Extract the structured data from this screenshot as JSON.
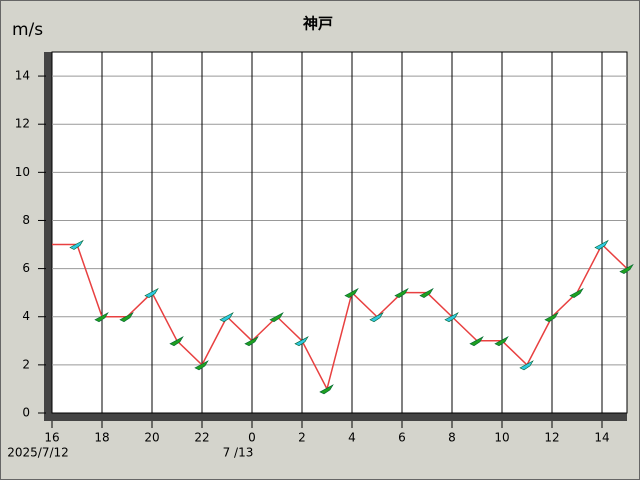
{
  "chart_data": {
    "type": "line",
    "title": "神戸",
    "y_label": "m/s",
    "categories": [
      "16",
      null,
      "18",
      null,
      "20",
      null,
      "22",
      null,
      "0",
      null,
      "2",
      null,
      "4",
      null,
      "6",
      null,
      "8",
      null,
      "10",
      null,
      "12",
      null,
      "14",
      null
    ],
    "x_sublabels": [
      "2025/7/12",
      null,
      null,
      null,
      null,
      null,
      null,
      null,
      "7 /13",
      null,
      null,
      null,
      null,
      null,
      null,
      null,
      null,
      null,
      null,
      null,
      null,
      null,
      null,
      null
    ],
    "series": [
      {
        "color": "#e84040",
        "values": [
          7,
          7,
          4,
          4,
          5,
          3,
          2,
          4,
          3,
          4,
          3,
          1,
          5,
          4,
          5,
          5,
          4,
          3,
          3,
          2,
          4,
          5,
          7,
          6
        ]
      }
    ],
    "ylim": [
      0,
      15
    ],
    "yticks": [
      0,
      2,
      4,
      6,
      8,
      10,
      12,
      14
    ],
    "grid": true
  }
}
